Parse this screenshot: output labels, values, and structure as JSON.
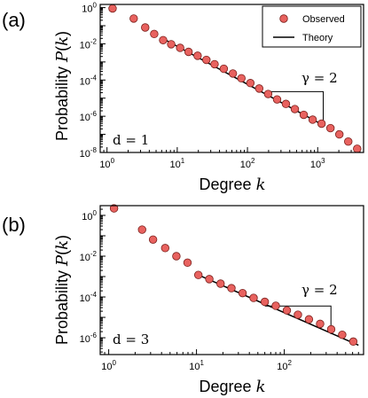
{
  "colors": {
    "marker_fill": "#e8625f",
    "marker_stroke": "#7a1f1b",
    "line": "#000000"
  },
  "chart_data": [
    {
      "type": "scatter",
      "panel_label": "(a)",
      "xlabel": "Degree k",
      "ylabel": "Probability P(k)",
      "xlog": true,
      "ylog": true,
      "xlim": [
        0.8,
        4500
      ],
      "ylim": [
        1e-08,
        1.5
      ],
      "xticks": [
        {
          "v": 1,
          "base": "10",
          "exp": "0"
        },
        {
          "v": 10,
          "base": "10",
          "exp": "1"
        },
        {
          "v": 100,
          "base": "10",
          "exp": "2"
        },
        {
          "v": 1000,
          "base": "10",
          "exp": "3"
        }
      ],
      "yticks": [
        {
          "v": 1,
          "base": "10",
          "exp": "0"
        },
        {
          "v": 0.01,
          "base": "10",
          "exp": "-2"
        },
        {
          "v": 0.0001,
          "base": "10",
          "exp": "-4"
        },
        {
          "v": 1e-06,
          "base": "10",
          "exp": "-6"
        },
        {
          "v": 1e-08,
          "base": "10",
          "exp": "-8"
        }
      ],
      "legend": {
        "placement": "top-right",
        "entries": [
          "Observed",
          "Theory"
        ]
      },
      "annotation_d": "d = 1",
      "annotation_gamma": "γ = 2",
      "series": [
        {
          "name": "Observed",
          "kind": "points",
          "x": [
            1.2,
            2.4,
            3.5,
            4.7,
            6.3,
            8.2,
            11,
            14.5,
            19.5,
            26,
            34,
            46,
            62,
            82,
            110,
            147,
            197,
            264,
            353,
            473,
            633,
            848,
            1135,
            1520,
            2035,
            2725,
            3650
          ],
          "y": [
            0.9,
            0.25,
            0.08,
            0.035,
            0.016,
            0.0095,
            0.006,
            0.0036,
            0.0022,
            0.0013,
            0.00075,
            0.00042,
            0.00023,
            0.000125,
            6.8e-05,
            3.4e-05,
            1.7e-05,
            8.5e-06,
            4.8e-06,
            2.5e-06,
            1.2e-06,
            6.5e-07,
            3.9e-07,
            2.2e-07,
            1e-07,
            4e-08,
            1.6e-08
          ]
        },
        {
          "name": "Theory",
          "kind": "line",
          "x": [
            6.5,
            1200
          ],
          "y": [
            0.018,
            3.2e-07
          ]
        }
      ],
      "slope_triangle": {
        "x": [
          180,
          1200
        ],
        "y": [
          2.3e-05,
          3.2e-07
        ]
      }
    },
    {
      "type": "scatter",
      "panel_label": "(b)",
      "xlabel": "Degree k",
      "ylabel": "Probability P(k)",
      "xlog": true,
      "ylog": true,
      "xlim": [
        0.8,
        800
      ],
      "ylim": [
        1.5e-07,
        3
      ],
      "xticks": [
        {
          "v": 1,
          "base": "10",
          "exp": "0"
        },
        {
          "v": 10,
          "base": "10",
          "exp": "1"
        },
        {
          "v": 100,
          "base": "10",
          "exp": "2"
        }
      ],
      "yticks": [
        {
          "v": 1,
          "base": "10",
          "exp": "0"
        },
        {
          "v": 0.01,
          "base": "10",
          "exp": "-2"
        },
        {
          "v": 0.0001,
          "base": "10",
          "exp": "-4"
        },
        {
          "v": 1e-06,
          "base": "10",
          "exp": "-6"
        }
      ],
      "annotation_d": "d = 3",
      "annotation_gamma": "γ = 2",
      "series": [
        {
          "name": "Observed",
          "kind": "points",
          "x": [
            1.15,
            2.4,
            3.2,
            4.4,
            5.9,
            7.9,
            10.5,
            14,
            18.8,
            25,
            33.5,
            44.7,
            60,
            80,
            107,
            143,
            191,
            256,
            342,
            457,
            611
          ],
          "y": [
            2.2,
            0.2,
            0.065,
            0.025,
            0.01,
            0.0048,
            0.0012,
            0.00075,
            0.00045,
            0.00027,
            0.000155,
            9e-05,
            5.8e-05,
            3.7e-05,
            2.2e-05,
            1.35e-05,
            8e-06,
            4.8e-06,
            2.6e-06,
            1.4e-06,
            6.5e-07
          ]
        },
        {
          "name": "Theory",
          "kind": "line",
          "x": [
            10.5,
            700
          ],
          "y": [
            0.0012,
            4.3e-07
          ]
        }
      ],
      "slope_triangle": {
        "x": [
          60,
          340
        ],
        "y": [
          3.6e-05,
          1.5e-06
        ]
      }
    }
  ]
}
